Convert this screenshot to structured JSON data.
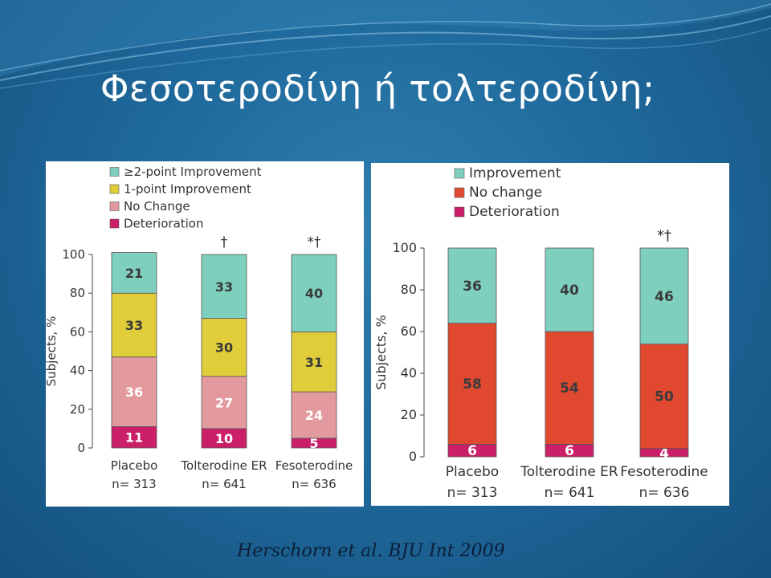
{
  "slide": {
    "title": "Φεσοτεροδίνη ή τολτεροδίνη;",
    "citation": "Herschorn et al. BJU Int 2009",
    "background_color": "#1f6a9c"
  },
  "chart_data": [
    {
      "type": "bar",
      "stacked": true,
      "title": "",
      "xlabel": "",
      "ylabel": "Subjects, %",
      "ylim": [
        0,
        100
      ],
      "yticks": [
        0,
        20,
        40,
        60,
        80,
        100
      ],
      "categories": [
        "Placebo",
        "Tolterodine ER",
        "Fesoterodine"
      ],
      "category_n": [
        "n= 313",
        "n= 641",
        "n= 636"
      ],
      "annotations": [
        "",
        "†",
        "*†"
      ],
      "legend_position": "top-left",
      "series": [
        {
          "name": "Deterioration",
          "values": [
            11,
            10,
            5
          ],
          "color": "#cc1f6a",
          "label_color": "#ffffff"
        },
        {
          "name": "No Change",
          "values": [
            36,
            27,
            24
          ],
          "color": "#e39a9f",
          "label_color": "#ffffff"
        },
        {
          "name": "1-point Improvement",
          "values": [
            33,
            30,
            31
          ],
          "color": "#e1cc3a",
          "label_color": "#3a3a3a"
        },
        {
          "name": "≥2-point Improvement",
          "values": [
            21,
            33,
            40
          ],
          "color": "#7fcfbe",
          "label_color": "#3a3a3a"
        }
      ]
    },
    {
      "type": "bar",
      "stacked": true,
      "title": "",
      "xlabel": "",
      "ylabel": "Subjects, %",
      "ylim": [
        0,
        100
      ],
      "yticks": [
        0,
        20,
        40,
        60,
        80,
        100
      ],
      "categories": [
        "Placebo",
        "Tolterodine ER",
        "Fesoterodine"
      ],
      "category_n": [
        "n= 313",
        "n= 641",
        "n= 636"
      ],
      "annotations": [
        "",
        "",
        "*†"
      ],
      "legend_position": "top-left",
      "series": [
        {
          "name": "Deterioration",
          "values": [
            6,
            6,
            4
          ],
          "color": "#cc1f6a",
          "label_color": "#ffffff"
        },
        {
          "name": "No change",
          "values": [
            58,
            54,
            50
          ],
          "color": "#e0492f",
          "label_color": "#3a3a3a"
        },
        {
          "name": "Improvement",
          "values": [
            36,
            40,
            46
          ],
          "color": "#7fcfbe",
          "label_color": "#3a3a3a"
        }
      ]
    }
  ]
}
